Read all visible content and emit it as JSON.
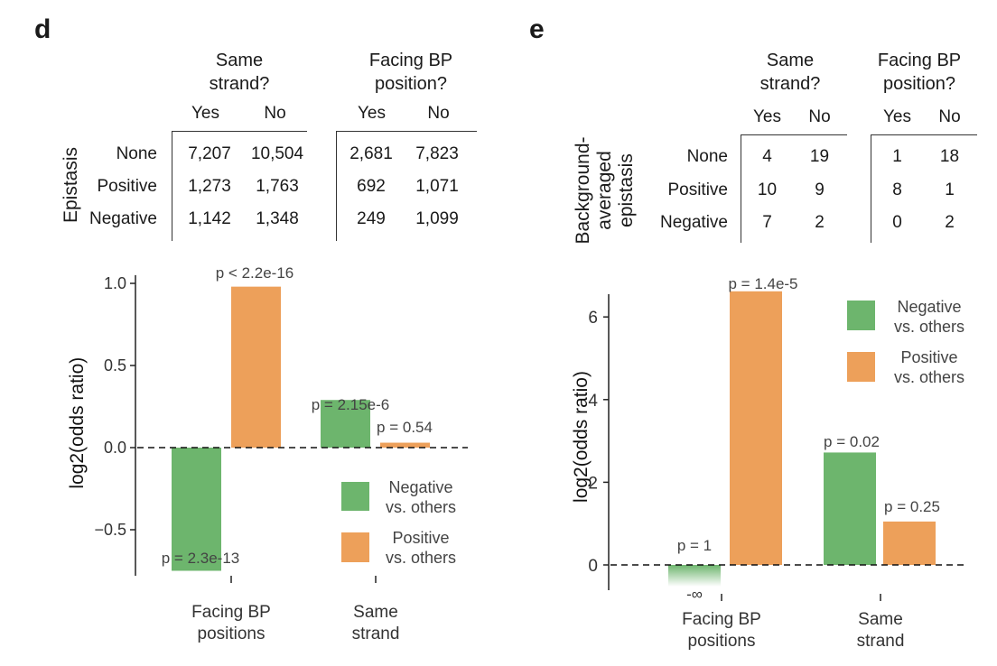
{
  "panel_d": {
    "label": "d",
    "table": {
      "row_axis_label": "Epistasis",
      "group1": "Same\nstrand?",
      "group2": "Facing BP\nposition?",
      "columns": [
        "Yes",
        "No",
        "Yes",
        "No"
      ],
      "rows": [
        {
          "label": "None",
          "values": [
            "7,207",
            "10,504",
            "2,681",
            "7,823"
          ]
        },
        {
          "label": "Positive",
          "values": [
            "1,273",
            "1,763",
            "692",
            "1,071"
          ]
        },
        {
          "label": "Negative",
          "values": [
            "1,142",
            "1,348",
            "249",
            "1,099"
          ]
        }
      ]
    }
  },
  "panel_e": {
    "label": "e",
    "table": {
      "row_axis_label_line1": "Background-",
      "row_axis_label_line2": "averaged",
      "row_axis_label_line3": "epistasis",
      "group1": "Same\nstrand?",
      "group2": "Facing BP\nposition?",
      "columns": [
        "Yes",
        "No",
        "Yes",
        "No"
      ],
      "rows": [
        {
          "label": "None",
          "values": [
            "4",
            "19",
            "1",
            "18"
          ]
        },
        {
          "label": "Positive",
          "values": [
            "10",
            "9",
            "8",
            "1"
          ]
        },
        {
          "label": "Negative",
          "values": [
            "7",
            "2",
            "0",
            "2"
          ]
        }
      ]
    }
  },
  "colors": {
    "negative": "#6db56d",
    "positive": "#eda05a"
  },
  "chart_data": [
    {
      "type": "bar",
      "ylabel": "log2(odds  ratio)",
      "xlabel": "",
      "ylim": [
        -0.78,
        1.05
      ],
      "yticks": [
        "1.0",
        "0.5",
        "0.0",
        "−0.5"
      ],
      "ytick_values": [
        1.0,
        0.5,
        0.0,
        -0.5
      ],
      "categories": [
        "Facing BP\npositions",
        "Same\nstrand"
      ],
      "series": [
        {
          "name": "Negative\nvs. others",
          "values": [
            -0.75,
            0.29
          ],
          "pvalues": [
            "p = 2.3e-13",
            "p = 2.15e-6"
          ]
        },
        {
          "name": "Positive\nvs. others",
          "values": [
            0.98,
            0.03
          ],
          "pvalues": [
            "p < 2.2e-16",
            "p = 0.54"
          ]
        }
      ],
      "legend": "bottom-right"
    },
    {
      "type": "bar",
      "ylabel": "log2(odds ratio)",
      "xlabel": "",
      "ylim": [
        -0.6,
        6.7
      ],
      "yticks": [
        "6",
        "4",
        "2",
        "0"
      ],
      "ytick_values": [
        6,
        4,
        2,
        0
      ],
      "categories": [
        "Facing BP\npositions",
        "Same\nstrand"
      ],
      "series": [
        {
          "name": "Negative\nvs. others",
          "values": [
            "-∞",
            2.72
          ],
          "pvalues": [
            "p = 1",
            "p = 0.02"
          ]
        },
        {
          "name": "Positive\nvs. others",
          "values": [
            6.62,
            1.05
          ],
          "pvalues": [
            "p = 1.4e-5",
            "p = 0.25"
          ]
        }
      ],
      "neg_infinity_label": "-∞",
      "legend": "top-right"
    }
  ]
}
